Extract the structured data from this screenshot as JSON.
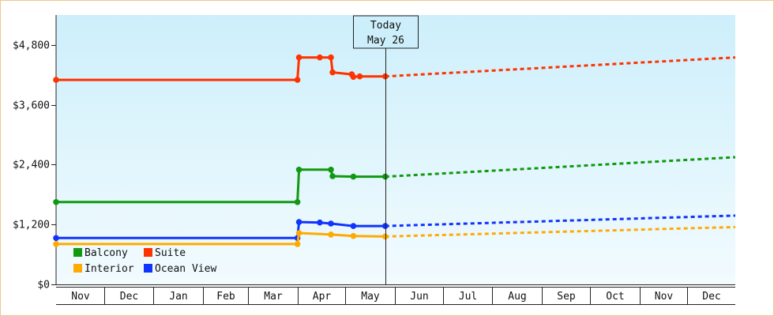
{
  "colors": {
    "balcony": "#119911",
    "suite": "#ff3300",
    "interior": "#ffaa00",
    "ocean_view": "#1133ff",
    "plot_bg_top": "#cdeffb",
    "plot_bg_bottom": "#f2fbfe",
    "frame_border": "#f0c890"
  },
  "today_marker": {
    "line1": "Today",
    "line2": "May 26",
    "date": "2025-05-26"
  },
  "chart_data": {
    "type": "line",
    "subtype": "step",
    "title": "",
    "xlabel": "",
    "ylabel": "",
    "ylim": [
      0,
      5400
    ],
    "xlim": [
      "2024-11-01",
      "2025-12-31"
    ],
    "yticks": [
      0,
      1200,
      2400,
      3600,
      4800
    ],
    "ytick_labels": [
      "$0",
      "$1,200",
      "$2,400",
      "$3,600",
      "$4,800"
    ],
    "months": [
      "Nov",
      "Dec",
      "Jan",
      "Feb",
      "Mar",
      "Apr",
      "May",
      "Jun",
      "Jul",
      "Aug",
      "Sep",
      "Oct",
      "Nov",
      "Dec"
    ],
    "legend_position": "bottom-left",
    "grid": false,
    "series": [
      {
        "name": "Suite",
        "color_key": "suite",
        "points": [
          [
            "2024-11-01",
            4100
          ],
          [
            "2025-04-01",
            4100
          ],
          [
            "2025-04-02",
            4550
          ],
          [
            "2025-04-15",
            4550
          ],
          [
            "2025-04-22",
            4550
          ],
          [
            "2025-04-23",
            4250
          ],
          [
            "2025-05-05",
            4210
          ],
          [
            "2025-05-06",
            4160
          ],
          [
            "2025-05-10",
            4170
          ],
          [
            "2025-05-26",
            4170
          ]
        ],
        "forecast": [
          [
            "2025-05-26",
            4170
          ],
          [
            "2025-12-31",
            4550
          ]
        ]
      },
      {
        "name": "Balcony",
        "color_key": "balcony",
        "points": [
          [
            "2024-11-01",
            1650
          ],
          [
            "2025-04-01",
            1650
          ],
          [
            "2025-04-02",
            2300
          ],
          [
            "2025-04-22",
            2300
          ],
          [
            "2025-04-23",
            2170
          ],
          [
            "2025-05-06",
            2160
          ],
          [
            "2025-05-26",
            2160
          ]
        ],
        "forecast": [
          [
            "2025-05-26",
            2160
          ],
          [
            "2025-12-31",
            2550
          ]
        ]
      },
      {
        "name": "Ocean View",
        "color_key": "ocean_view",
        "points": [
          [
            "2024-11-01",
            930
          ],
          [
            "2025-04-01",
            930
          ],
          [
            "2025-04-02",
            1250
          ],
          [
            "2025-04-15",
            1240
          ],
          [
            "2025-04-22",
            1220
          ],
          [
            "2025-05-06",
            1170
          ],
          [
            "2025-05-26",
            1170
          ]
        ],
        "forecast": [
          [
            "2025-05-26",
            1170
          ],
          [
            "2025-12-31",
            1380
          ]
        ]
      },
      {
        "name": "Interior",
        "color_key": "interior",
        "points": [
          [
            "2024-11-01",
            810
          ],
          [
            "2025-04-01",
            810
          ],
          [
            "2025-04-02",
            1030
          ],
          [
            "2025-04-22",
            1000
          ],
          [
            "2025-05-06",
            970
          ],
          [
            "2025-05-26",
            960
          ]
        ],
        "forecast": [
          [
            "2025-05-26",
            960
          ],
          [
            "2025-12-31",
            1150
          ]
        ]
      }
    ],
    "legend": [
      {
        "label": "Balcony",
        "color_key": "balcony"
      },
      {
        "label": "Suite",
        "color_key": "suite"
      },
      {
        "label": "Interior",
        "color_key": "interior"
      },
      {
        "label": "Ocean View",
        "color_key": "ocean_view"
      }
    ]
  }
}
